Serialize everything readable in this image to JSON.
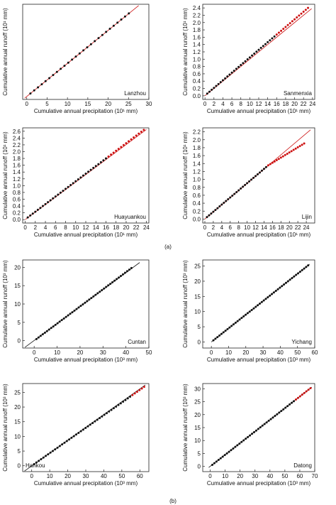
{
  "figure": {
    "subfigure_labels": [
      "(a)",
      "(b)"
    ],
    "colors": {
      "observed": "#111111",
      "fit": "#cc1111",
      "recent": "#cc1111",
      "axis": "#222222"
    }
  },
  "chart_data": [
    {
      "type": "scatter",
      "name": "Lanzhou",
      "group": "(a)",
      "xlabel": "Cumulative annual precipitation (10¹ mm)",
      "ylabel": "Cumulative annual runoff (10¹ mm)",
      "xlim": [
        -1,
        30
      ],
      "ylim": [
        -0.2,
        7
      ],
      "xticks": [
        "0",
        "5",
        "10",
        "15",
        "20",
        "25",
        "30"
      ],
      "xtickvals": [
        0,
        5,
        10,
        15,
        20,
        25,
        30
      ],
      "yticks": [],
      "ytickvals": [],
      "fit": {
        "x": [
          -0.5,
          27.5
        ],
        "y": [
          -0.1,
          6.9
        ]
      },
      "points": {
        "x_start": 0.9,
        "x_step": 0.93,
        "y_start": 0.25,
        "y_step": 0.233,
        "count": 27,
        "red_from": 27
      },
      "label_position": "bottom-right"
    },
    {
      "type": "scatter",
      "name": "Sanmenxia",
      "group": "(a)",
      "xlabel": "Cumulative annual precipitation (10¹ mm)",
      "ylabel": "Cumulative annual runoff (10¹ mm)",
      "xlim": [
        -0.5,
        24.5
      ],
      "ylim": [
        -0.1,
        2.5
      ],
      "xticks": [
        "0",
        "2",
        "4",
        "6",
        "8",
        "10",
        "12",
        "14",
        "16",
        "18",
        "20",
        "22",
        "24"
      ],
      "xtickvals": [
        0,
        2,
        4,
        6,
        8,
        10,
        12,
        14,
        16,
        18,
        20,
        22,
        24
      ],
      "yticks": [
        "0.0",
        "0.2",
        "0.4",
        "0.6",
        "0.8",
        "1.0",
        "1.2",
        "1.4",
        "1.6",
        "1.8",
        "2.0",
        "2.2",
        "2.4"
      ],
      "ytickvals": [
        0,
        0.2,
        0.4,
        0.6,
        0.8,
        1.0,
        1.2,
        1.4,
        1.6,
        1.8,
        2.0,
        2.2,
        2.4
      ],
      "fit": {
        "x": [
          0,
          23.8
        ],
        "y": [
          0,
          2.38
        ]
      },
      "points": {
        "x_start": 0.5,
        "x_step": 0.5,
        "y_start": 0.06,
        "y_step": 0.052,
        "count": 46,
        "red_from": 31
      },
      "label_position": "bottom-right"
    },
    {
      "type": "scatter",
      "name": "Huayuankou",
      "group": "(a)",
      "xlabel": "Cumulative annual precipitation (10¹ mm)",
      "ylabel": "Cumulative annual runoff (10¹ mm)",
      "xlim": [
        -0.5,
        24.5
      ],
      "ylim": [
        -0.1,
        2.7
      ],
      "xticks": [
        "0",
        "2",
        "4",
        "6",
        "8",
        "10",
        "12",
        "14",
        "16",
        "18",
        "20",
        "22",
        "24"
      ],
      "xtickvals": [
        0,
        2,
        4,
        6,
        8,
        10,
        12,
        14,
        16,
        18,
        20,
        22,
        24
      ],
      "yticks": [
        "0.0",
        "0.2",
        "0.4",
        "0.6",
        "0.8",
        "1.0",
        "1.2",
        "1.4",
        "1.6",
        "1.8",
        "2.0",
        "2.2",
        "2.4",
        "2.6"
      ],
      "ytickvals": [
        0,
        0.2,
        0.4,
        0.6,
        0.8,
        1.0,
        1.2,
        1.4,
        1.6,
        1.8,
        2.0,
        2.2,
        2.4,
        2.6
      ],
      "fit": {
        "x": [
          0,
          24
        ],
        "y": [
          0,
          2.65
        ]
      },
      "points": {
        "x_start": 0.5,
        "x_step": 0.5,
        "y_start": 0.065,
        "y_step": 0.056,
        "count": 47,
        "red_from": 32
      },
      "label_position": "bottom-right"
    },
    {
      "type": "scatter",
      "name": "Lijin",
      "group": "(a)",
      "xlabel": "Cumulative annual precipitation (10¹ mm)",
      "ylabel": "Cumulative annual runoff (10¹ mm)",
      "xlim": [
        -0.5,
        26
      ],
      "ylim": [
        -0.1,
        2.3
      ],
      "xticks": [
        "0",
        "2",
        "4",
        "6",
        "8",
        "10",
        "12",
        "14",
        "16",
        "18",
        "20",
        "22",
        "24"
      ],
      "xtickvals": [
        0,
        2,
        4,
        6,
        8,
        10,
        12,
        14,
        16,
        18,
        20,
        22,
        24
      ],
      "yticks": [
        "0.0",
        "0.2",
        "0.4",
        "0.6",
        "0.8",
        "1.0",
        "1.2",
        "1.4",
        "1.6",
        "1.8",
        "2.0",
        "2.2"
      ],
      "ytickvals": [
        0,
        0.2,
        0.4,
        0.6,
        0.8,
        1.0,
        1.2,
        1.4,
        1.6,
        1.8,
        2.0,
        2.2
      ],
      "fit": {
        "x": [
          0,
          25
        ],
        "y": [
          0,
          2.25
        ]
      },
      "points": {
        "x_start": 0.5,
        "x_step": 0.5,
        "y_start": 0.05,
        "y_step": 0.045,
        "count": 47,
        "red_from": 29,
        "bend": 0.5
      },
      "label_position": "bottom-right"
    },
    {
      "type": "scatter",
      "name": "Cuntan",
      "group": "(b)",
      "xlabel": "Cumulative annual precipitation (10³ mm)",
      "ylabel": "Cumulative annual runoff (10³ mm)",
      "xlim": [
        -5,
        50
      ],
      "ylim": [
        -2,
        22
      ],
      "xticks": [
        "0",
        "10",
        "20",
        "30",
        "40",
        "50"
      ],
      "xtickvals": [
        0,
        10,
        20,
        30,
        40,
        50
      ],
      "yticks": [
        "0",
        "5",
        "10",
        "15",
        "20"
      ],
      "ytickvals": [
        0,
        5,
        10,
        15,
        20
      ],
      "fit": {
        "x": [
          -4,
          46
        ],
        "y": [
          -1.8,
          21.3
        ]
      },
      "points": {
        "x_start": 1,
        "x_step": 0.92,
        "y_start": 0.45,
        "y_step": 0.43,
        "count": 46,
        "red_from": 46
      },
      "label_position": "bottom-right"
    },
    {
      "type": "scatter",
      "name": "Yichang",
      "group": "(b)",
      "xlabel": "Cumulative annual precipitation (10³ mm)",
      "ylabel": "Cumulative annual runoff (10³ mm)",
      "xlim": [
        -5,
        60
      ],
      "ylim": [
        -2,
        27
      ],
      "xticks": [
        "0",
        "10",
        "20",
        "30",
        "40",
        "50",
        "60"
      ],
      "xtickvals": [
        0,
        10,
        20,
        30,
        40,
        50,
        60
      ],
      "yticks": [
        "0",
        "5",
        "10",
        "15",
        "20",
        "25"
      ],
      "ytickvals": [
        0,
        5,
        10,
        15,
        20,
        25
      ],
      "fit": {
        "x": [
          0,
          57
        ],
        "y": [
          0,
          25.6
        ]
      },
      "points": {
        "x_start": 1.2,
        "x_step": 1.17,
        "y_start": 0.55,
        "y_step": 0.525,
        "count": 48,
        "red_from": 48
      },
      "label_position": "bottom-right"
    },
    {
      "type": "scatter",
      "name": "Hankou",
      "group": "(b)",
      "xlabel": "Cumulative annual precipitation (10³ mm)",
      "ylabel": "Cumulative annual runoff (10³ mm)",
      "xlim": [
        -5,
        65
      ],
      "ylim": [
        -2,
        28
      ],
      "xticks": [
        "0",
        "10",
        "20",
        "30",
        "40",
        "50",
        "60"
      ],
      "xtickvals": [
        0,
        10,
        20,
        30,
        40,
        50,
        60
      ],
      "yticks": [
        "0",
        "5",
        "10",
        "15",
        "20",
        "25"
      ],
      "ytickvals": [
        0,
        5,
        10,
        15,
        20,
        25
      ],
      "fit": {
        "x": [
          -4,
          63
        ],
        "y": [
          -1.8,
          27.5
        ]
      },
      "points": {
        "x_start": 1.3,
        "x_step": 1.3,
        "y_start": 0.55,
        "y_step": 0.56,
        "count": 48,
        "red_from": 42
      },
      "label_position": "bottom-left"
    },
    {
      "type": "scatter",
      "name": "Datong",
      "group": "(b)",
      "xlabel": "Cumulative annual precipitation (10³ mm)",
      "ylabel": "Cumulative annual runoff (10³ mm)",
      "xlim": [
        -5,
        70
      ],
      "ylim": [
        -2,
        32
      ],
      "xticks": [
        "0",
        "10",
        "20",
        "30",
        "40",
        "50",
        "60",
        "70"
      ],
      "xtickvals": [
        0,
        10,
        20,
        30,
        40,
        50,
        60,
        70
      ],
      "yticks": [
        "0",
        "5",
        "10",
        "15",
        "20",
        "25",
        "30"
      ],
      "ytickvals": [
        0,
        5,
        10,
        15,
        20,
        25,
        30
      ],
      "fit": {
        "x": [
          -1,
          68
        ],
        "y": [
          -0.4,
          30.6
        ]
      },
      "points": {
        "x_start": 1.4,
        "x_step": 1.4,
        "y_start": 0.62,
        "y_step": 0.63,
        "count": 48,
        "red_from": 40
      },
      "label_position": "bottom-right"
    }
  ]
}
